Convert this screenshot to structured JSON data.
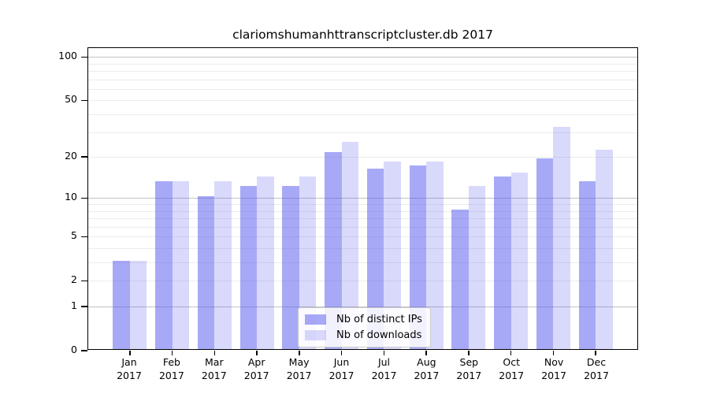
{
  "title": "clariomshumanhttranscriptcluster.db 2017",
  "chart_data": {
    "type": "bar",
    "title": "clariomshumanhttranscriptcluster.db 2017",
    "categories": [
      "Jan 2017",
      "Feb 2017",
      "Mar 2017",
      "Apr 2017",
      "May 2017",
      "Jun 2017",
      "Jul 2017",
      "Aug 2017",
      "Sep 2017",
      "Oct 2017",
      "Nov 2017",
      "Dec 2017"
    ],
    "series": [
      {
        "name": "Nb of distinct IPs",
        "color": "rgba(80,83,238,0.5)",
        "values": [
          3,
          13,
          10,
          12,
          12,
          21,
          16,
          17,
          8,
          14,
          19,
          13
        ]
      },
      {
        "name": "Nb of downloads",
        "color": "rgba(80,83,238,0.22)",
        "values": [
          3,
          13,
          13,
          14,
          14,
          25,
          18,
          18,
          12,
          15,
          32,
          22
        ]
      }
    ],
    "xlabel": "",
    "ylabel": "",
    "yscale": "log1p",
    "ylim": [
      0,
      115
    ],
    "yticks": [
      0,
      1,
      2,
      5,
      10,
      20,
      50,
      100
    ],
    "grid": "on",
    "grid_major_values": [
      1,
      10,
      100
    ],
    "grid_minor_values": [
      2,
      3,
      4,
      5,
      6,
      7,
      8,
      9,
      20,
      30,
      40,
      50,
      60,
      70,
      80,
      90
    ],
    "legend_position": "bottom-center",
    "legend_entries": [
      "Nb of distinct IPs",
      "Nb of downloads"
    ]
  }
}
